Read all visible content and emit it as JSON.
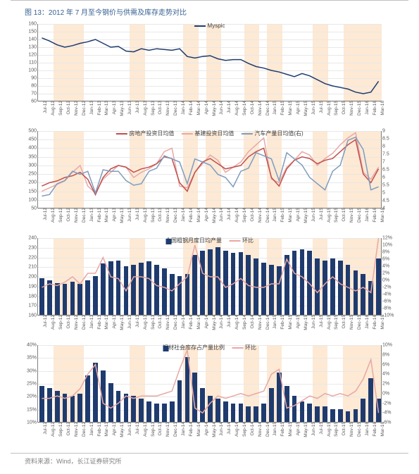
{
  "title": "图 13：2012 年 7 月至今钢价与供需及库存走势对比",
  "footer": "资料来源：Wind，长江证券研究所",
  "xlabels": [
    "Jul-12",
    "Aug-12",
    "Sep-12",
    "Oct-12",
    "Nov-12",
    "Dec-12",
    "Jan-13",
    "Feb-13",
    "Mar-13",
    "Apr-13",
    "May-13",
    "Jun-13",
    "Jul-13",
    "Aug-13",
    "Sep-13",
    "Oct-13",
    "Nov-13",
    "Dec-13",
    "Jan-14",
    "Feb-14",
    "Mar-14",
    "Apr-14",
    "May-14",
    "Jun-14",
    "Jul-14",
    "Aug-14",
    "Sep-14",
    "Oct-14",
    "Nov-14",
    "Dec-14",
    "Jan-15",
    "Feb-15",
    "Mar-15",
    "Apr-15",
    "May-15",
    "Jun-15",
    "Jul-15",
    "Aug-15",
    "Sep-15",
    "Oct-15",
    "Nov-15",
    "Dec-15",
    "Jan-16",
    "Feb-16",
    "Mar-16"
  ],
  "bands": [
    [
      2,
      5
    ],
    [
      12,
      13
    ],
    [
      19,
      20
    ],
    [
      22,
      23
    ],
    [
      27,
      28
    ],
    [
      30,
      31
    ],
    [
      36,
      37
    ],
    [
      40,
      42
    ],
    [
      43,
      44
    ]
  ],
  "colors": {
    "band": "#fde5cc",
    "navy": "#1f3b6e",
    "red": "#c0504d",
    "pink": "#e8a8a5",
    "steelblue": "#7e9cbf",
    "grid": "#e8e8e8",
    "axis": "#808080"
  },
  "chart1": {
    "legend": [
      {
        "label": "Myspic",
        "color": "#1f3b6e"
      }
    ],
    "ylim": [
      60,
      160
    ],
    "yticks": [
      60,
      70,
      80,
      90,
      100,
      110,
      120,
      130,
      140,
      150,
      160
    ],
    "values": [
      142,
      138,
      133,
      130,
      132,
      135,
      137,
      140,
      135,
      130,
      131,
      125,
      124,
      128,
      126,
      128,
      127,
      126,
      128,
      118,
      116,
      118,
      119,
      115,
      113,
      114,
      114,
      109,
      105,
      103,
      100,
      98,
      95,
      92,
      96,
      93,
      88,
      83,
      80,
      78,
      76,
      72,
      70,
      72,
      86
    ]
  },
  "chart2": {
    "legend": [
      {
        "label": "房地产投资日均值",
        "color": "#c0504d"
      },
      {
        "label": "基建投资日均值",
        "color": "#e8a8a5"
      },
      {
        "label": "汽车产量日均值(右)",
        "color": "#7e9cbf"
      }
    ],
    "ylim": [
      50,
      500
    ],
    "yticks": [
      50,
      100,
      150,
      200,
      250,
      300,
      350,
      400,
      450,
      500
    ],
    "ylim_r": [
      4.0,
      9.0
    ],
    "yticks_r": [
      4.0,
      4.5,
      5.0,
      5.5,
      6.0,
      6.5,
      7.0,
      7.5,
      8.0,
      8.5,
      9.0
    ],
    "s_red": [
      180,
      200,
      210,
      230,
      240,
      260,
      220,
      130,
      230,
      280,
      300,
      290,
      260,
      280,
      290,
      310,
      350,
      340,
      200,
      150,
      260,
      320,
      340,
      310,
      280,
      290,
      300,
      350,
      380,
      400,
      230,
      180,
      280,
      330,
      350,
      340,
      310,
      330,
      340,
      380,
      420,
      450,
      250,
      200,
      280
    ],
    "s_pink": [
      150,
      170,
      190,
      210,
      260,
      300,
      180,
      140,
      220,
      260,
      300,
      290,
      230,
      260,
      280,
      310,
      380,
      400,
      180,
      170,
      260,
      310,
      360,
      330,
      260,
      290,
      320,
      380,
      420,
      460,
      220,
      200,
      290,
      330,
      380,
      360,
      300,
      340,
      370,
      420,
      460,
      490,
      260,
      220,
      290
    ],
    "s_blue": [
      4.8,
      4.9,
      5.6,
      5.8,
      6.4,
      6.2,
      6.4,
      5.0,
      6.5,
      6.4,
      6.4,
      5.8,
      5.5,
      5.6,
      6.4,
      6.6,
      7.4,
      7.2,
      7.0,
      5.6,
      7.2,
      7.0,
      6.8,
      6.2,
      6.0,
      5.4,
      6.4,
      6.6,
      7.6,
      7.4,
      7.2,
      5.8,
      7.6,
      7.2,
      6.8,
      6.0,
      5.6,
      5.2,
      6.4,
      6.8,
      8.4,
      8.6,
      7.8,
      5.2,
      5.4
    ]
  },
  "chart3": {
    "legend": [
      {
        "label": "全国粗钢月度日均产量",
        "color": "#1f3b6e",
        "type": "bar"
      },
      {
        "label": "环比",
        "color": "#e8a8a5",
        "type": "line"
      }
    ],
    "ylim": [
      160,
      240
    ],
    "yticks": [
      160,
      170,
      180,
      190,
      200,
      210,
      220,
      230,
      240
    ],
    "ylim_r": [
      -10,
      12
    ],
    "yticks_r": [
      "-10%",
      "-8%",
      "-6%",
      "-4%",
      "-2%",
      "0%",
      "2%",
      "4%",
      "6%",
      "8%",
      "10%",
      "12%"
    ],
    "bars": [
      198,
      196,
      193,
      192,
      194,
      192,
      196,
      200,
      213,
      215,
      216,
      210,
      212,
      214,
      215,
      212,
      208,
      202,
      200,
      202,
      222,
      226,
      228,
      230,
      226,
      224,
      225,
      222,
      218,
      214,
      212,
      210,
      222,
      226,
      228,
      226,
      218,
      216,
      218,
      216,
      212,
      206,
      202,
      195,
      218
    ],
    "line": [
      -2,
      -1,
      -1.5,
      -0.5,
      1,
      -1,
      2,
      2,
      6.5,
      1,
      0.5,
      -3,
      1,
      1,
      0.5,
      -1.5,
      -2,
      -3,
      -1,
      1,
      10,
      2,
      1,
      1,
      -2,
      -1,
      0.5,
      -1.5,
      -2,
      -2,
      -1,
      -1,
      6,
      2,
      1,
      -1,
      -3.5,
      -1,
      1,
      -1,
      -2,
      -3,
      -2,
      -3.5,
      12
    ]
  },
  "chart4": {
    "legend": [
      {
        "label": "钢材社会库存占产量比例",
        "color": "#1f3b6e",
        "type": "bar"
      },
      {
        "label": "环比",
        "color": "#e8a8a5",
        "type": "line"
      }
    ],
    "ylim": [
      10,
      40
    ],
    "yticks": [
      "10%",
      "15%",
      "20%",
      "25%",
      "30%",
      "35%",
      "40%"
    ],
    "ylim_r": [
      -6,
      10
    ],
    "yticks_r": [
      "-6%",
      "-4%",
      "-2%",
      "0%",
      "2%",
      "4%",
      "6%",
      "8%",
      "10%"
    ],
    "bars": [
      24,
      23,
      22,
      21,
      20,
      21,
      28,
      33,
      30,
      25,
      22,
      21,
      20,
      19,
      18,
      17,
      17,
      18,
      26,
      35,
      29,
      23,
      20,
      19,
      18,
      17,
      17,
      16,
      16,
      17,
      23,
      29,
      24,
      20,
      18,
      17,
      16,
      16,
      15,
      15,
      14,
      15,
      19,
      27,
      19
    ],
    "line": [
      -1,
      -1,
      -0.5,
      -1,
      -0.5,
      1,
      4,
      6,
      -2,
      -3,
      -2,
      -0.5,
      -1,
      -0.5,
      -0.5,
      -0.5,
      0,
      0.5,
      5,
      9,
      -3,
      -4,
      -2,
      -0.5,
      -1,
      -0.5,
      0,
      -0.5,
      0,
      0.5,
      4,
      5,
      -3,
      -2.5,
      -1.5,
      -0.5,
      -1,
      0,
      -0.5,
      0,
      -0.5,
      0.5,
      3,
      7,
      -4
    ]
  }
}
